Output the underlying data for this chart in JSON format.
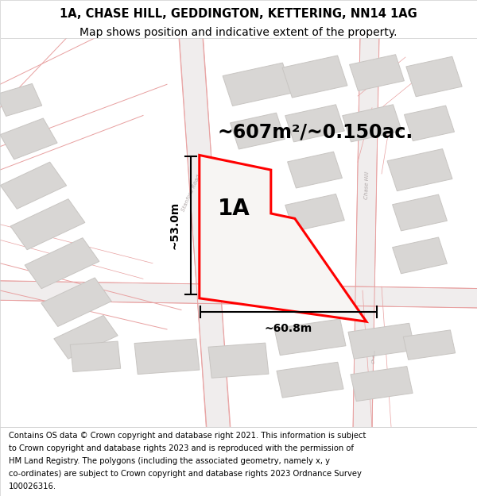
{
  "title_line1": "1A, CHASE HILL, GEDDINGTON, KETTERING, NN14 1AG",
  "title_line2": "Map shows position and indicative extent of the property.",
  "footer_text": "Contains OS data © Crown copyright and database right 2021. This information is subject to Crown copyright and database rights 2023 and is reproduced with the permission of HM Land Registry. The polygons (including the associated geometry, namely x, y co-ordinates) are subject to Crown copyright and database rights 2023 Ordnance Survey 100026316.",
  "area_label": "~607m²/~0.150ac.",
  "label_1a": "1A",
  "dim_width": "~60.8m",
  "dim_height": "~53.0m",
  "map_bg": "#fafafa",
  "road_line_color": "#e8a0a0",
  "road_fill_color": "#f0eded",
  "building_color": "#d8d6d4",
  "building_edge": "#c8c5c2",
  "highlight_color": "#ff0000",
  "title_fontsize": 10.5,
  "footer_fontsize": 7.2,
  "label_fontsize": 20,
  "dim_fontsize": 10,
  "area_fontsize": 17,
  "road_label_fontsize": 5.0,
  "road_label_color": "#b0a8a8",
  "title_fontsize_bold": 10.5
}
